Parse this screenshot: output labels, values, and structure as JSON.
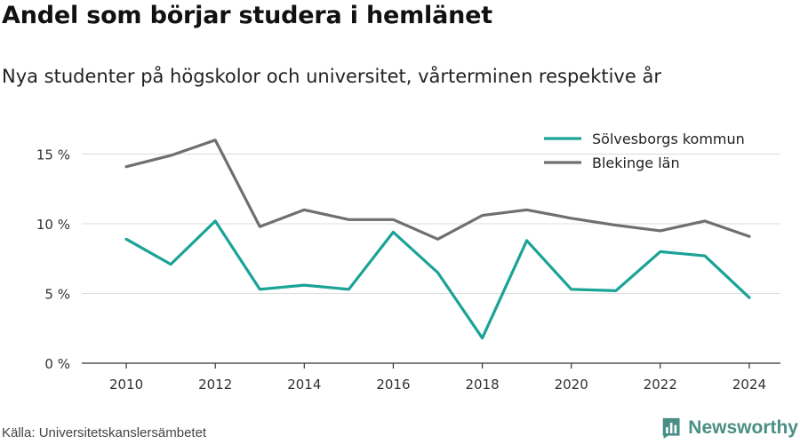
{
  "title": "Andel som börjar studera i hemlänet",
  "subtitle": "Nya studenter på högskolor och universitet, vårterminen respektive år",
  "source": "Källa: Universitetskanslersämbetet",
  "brand": {
    "name": "Newsworthy",
    "icon": "bar-chart-icon",
    "color": "#4a8f86"
  },
  "chart_data": {
    "type": "line",
    "x": [
      2010,
      2011,
      2012,
      2013,
      2014,
      2015,
      2016,
      2017,
      2018,
      2019,
      2020,
      2021,
      2022,
      2023,
      2024
    ],
    "x_ticks": [
      "2010",
      "2012",
      "2014",
      "2016",
      "2018",
      "2020",
      "2022",
      "2024"
    ],
    "y_ticks": [
      "0 %",
      "5 %",
      "10 %",
      "15 %"
    ],
    "ylim": [
      0,
      16.5
    ],
    "grid": true,
    "legend_position": "top-right",
    "series": [
      {
        "name": "Sölvesborgs kommun",
        "color": "#1aa396",
        "values": [
          8.9,
          7.1,
          10.2,
          5.3,
          5.6,
          5.3,
          9.4,
          6.5,
          1.8,
          8.8,
          5.3,
          5.2,
          8.0,
          7.7,
          4.7
        ]
      },
      {
        "name": "Blekinge län",
        "color": "#6f6f6f",
        "values": [
          14.1,
          14.9,
          16.0,
          9.8,
          11.0,
          10.3,
          10.3,
          8.9,
          10.6,
          11.0,
          10.4,
          9.9,
          9.5,
          10.2,
          9.1
        ]
      }
    ]
  }
}
